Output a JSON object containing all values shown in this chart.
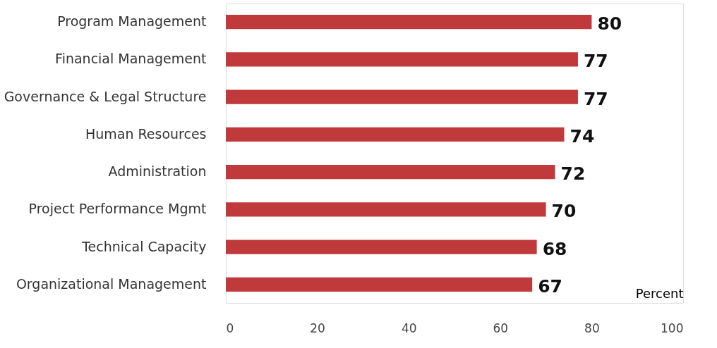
{
  "chart_data": {
    "type": "bar",
    "orientation": "horizontal",
    "xlabel": "Percent",
    "categories": [
      "Program Management",
      "Financial Management",
      "Governance & Legal Structure",
      "Human Resources",
      "Administration",
      "Project Performance Mgmt",
      "Technical Capacity",
      "Organizational Management"
    ],
    "values": [
      80,
      77,
      77,
      74,
      72,
      70,
      68,
      67
    ],
    "color": "#c0393b",
    "xlim": [
      0,
      100
    ],
    "xticks": [
      0,
      20,
      40,
      60,
      80,
      100
    ],
    "data_labels": true,
    "grid": false
  }
}
